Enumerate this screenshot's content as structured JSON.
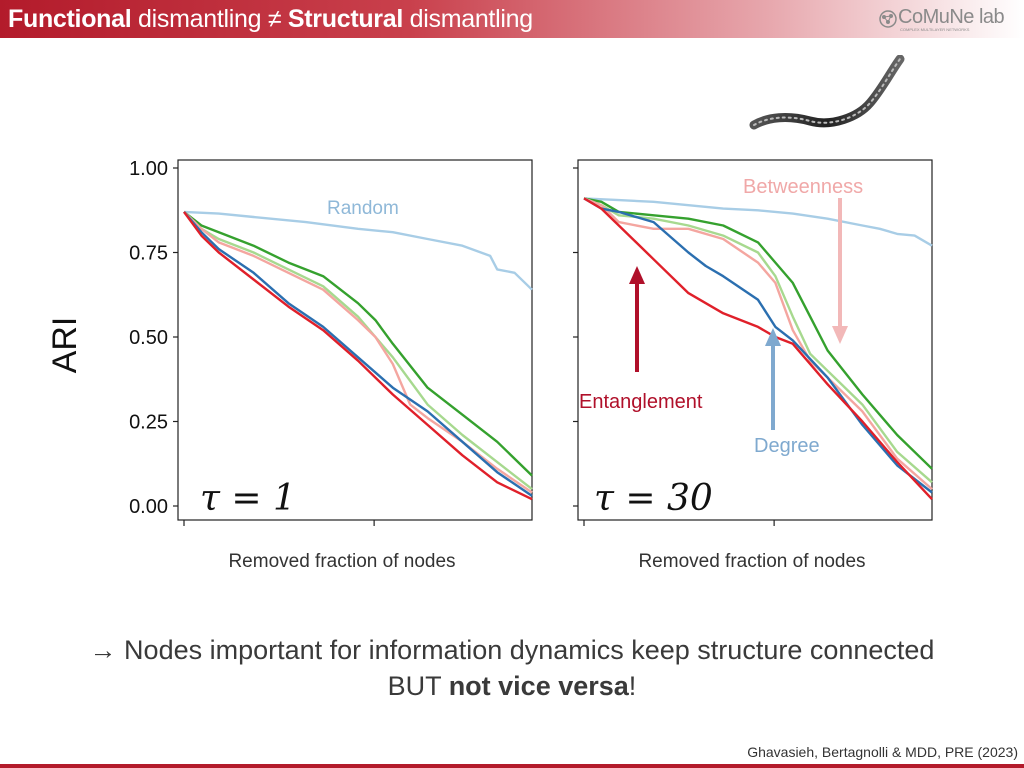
{
  "slide": {
    "title_bold_1": "Functional",
    "title_text_1": " dismantling ",
    "title_neq": "≠",
    "title_bold_2": " Structural",
    "title_text_2": " dismantling",
    "lab_name": "CoMuNe lab",
    "lab_subtitle": "COMPLEX MULTILAYER NETWORKS",
    "caption_line1": "→ Nodes important for information dynamics keep structure connected",
    "caption_line2_pre": "BUT ",
    "caption_line2_bold": "not vice versa",
    "caption_line2_post": "!",
    "citation": "Ghavasieh, Bertagnolli & MDD, PRE (2023)"
  },
  "colors": {
    "accent": "#b31b2b",
    "random": "#a8cde6",
    "degree": "#2b6fb0",
    "betweenness": "#f4a6a0",
    "entanglement": "#e0202a",
    "green_dark": "#35a12e",
    "green_light": "#a7d98f",
    "arrow_entanglement": "#b0102a",
    "arrow_degree": "#7fa9cf",
    "arrow_betweenness": "#f2b8b8"
  },
  "chart_data": [
    {
      "type": "line",
      "annotation": "τ = 1",
      "xlabel": "Removed fraction of nodes",
      "ylabel": "ARI",
      "ylim": [
        0,
        1
      ],
      "yticks": [
        "1.00",
        "0.75",
        "0.50",
        "0.25",
        "0.00"
      ],
      "series": [
        {
          "name": "Random",
          "color": "#a8cde6",
          "x": [
            0,
            0.1,
            0.2,
            0.35,
            0.5,
            0.6,
            0.7,
            0.8,
            0.88,
            0.9,
            0.95,
            1.0
          ],
          "y": [
            0.87,
            0.865,
            0.855,
            0.84,
            0.82,
            0.81,
            0.79,
            0.77,
            0.74,
            0.7,
            0.69,
            0.64
          ]
        },
        {
          "color": "#35a12e",
          "x": [
            0,
            0.05,
            0.1,
            0.2,
            0.3,
            0.4,
            0.5,
            0.55,
            0.6,
            0.7,
            0.8,
            0.9,
            1.0
          ],
          "y": [
            0.87,
            0.83,
            0.81,
            0.77,
            0.72,
            0.68,
            0.6,
            0.55,
            0.48,
            0.35,
            0.27,
            0.19,
            0.09
          ]
        },
        {
          "color": "#a7d98f",
          "x": [
            0,
            0.05,
            0.1,
            0.2,
            0.3,
            0.4,
            0.5,
            0.55,
            0.6,
            0.7,
            0.8,
            0.9,
            1.0
          ],
          "y": [
            0.87,
            0.82,
            0.79,
            0.75,
            0.7,
            0.65,
            0.56,
            0.5,
            0.44,
            0.3,
            0.21,
            0.13,
            0.05
          ]
        },
        {
          "name": "Betweenness",
          "color": "#f4a6a0",
          "x": [
            0,
            0.05,
            0.1,
            0.2,
            0.3,
            0.4,
            0.5,
            0.55,
            0.6,
            0.65,
            0.7,
            0.8,
            0.9,
            1.0
          ],
          "y": [
            0.87,
            0.82,
            0.78,
            0.74,
            0.69,
            0.64,
            0.55,
            0.5,
            0.42,
            0.3,
            0.26,
            0.19,
            0.11,
            0.04
          ]
        },
        {
          "name": "Degree",
          "color": "#2b6fb0",
          "x": [
            0,
            0.05,
            0.1,
            0.2,
            0.3,
            0.4,
            0.5,
            0.6,
            0.7,
            0.8,
            0.9,
            1.0
          ],
          "y": [
            0.87,
            0.81,
            0.76,
            0.69,
            0.6,
            0.53,
            0.44,
            0.35,
            0.28,
            0.19,
            0.1,
            0.03
          ]
        },
        {
          "name": "Entanglement",
          "color": "#e0202a",
          "x": [
            0,
            0.05,
            0.1,
            0.2,
            0.3,
            0.4,
            0.5,
            0.6,
            0.7,
            0.8,
            0.9,
            1.0
          ],
          "y": [
            0.87,
            0.8,
            0.75,
            0.67,
            0.59,
            0.52,
            0.43,
            0.33,
            0.24,
            0.15,
            0.07,
            0.02
          ]
        }
      ]
    },
    {
      "type": "line",
      "annotation": "τ = 30",
      "xlabel": "Removed fraction of nodes",
      "ylabel": "",
      "ylim": [
        0,
        1
      ],
      "series": [
        {
          "name": "Random",
          "color": "#a8cde6",
          "x": [
            0,
            0.1,
            0.2,
            0.3,
            0.4,
            0.5,
            0.6,
            0.7,
            0.8,
            0.85,
            0.9,
            0.95,
            1.0
          ],
          "y": [
            0.91,
            0.905,
            0.9,
            0.89,
            0.88,
            0.875,
            0.865,
            0.85,
            0.83,
            0.82,
            0.805,
            0.8,
            0.77
          ]
        },
        {
          "color": "#35a12e",
          "x": [
            0,
            0.05,
            0.1,
            0.2,
            0.3,
            0.4,
            0.5,
            0.55,
            0.6,
            0.65,
            0.7,
            0.8,
            0.9,
            1.0
          ],
          "y": [
            0.91,
            0.9,
            0.87,
            0.86,
            0.85,
            0.83,
            0.78,
            0.72,
            0.66,
            0.56,
            0.46,
            0.33,
            0.21,
            0.11
          ]
        },
        {
          "color": "#a7d98f",
          "x": [
            0,
            0.05,
            0.1,
            0.2,
            0.3,
            0.4,
            0.5,
            0.55,
            0.6,
            0.65,
            0.7,
            0.8,
            0.9,
            1.0
          ],
          "y": [
            0.91,
            0.89,
            0.86,
            0.85,
            0.83,
            0.8,
            0.75,
            0.68,
            0.56,
            0.45,
            0.4,
            0.3,
            0.16,
            0.07
          ]
        },
        {
          "name": "Betweenness",
          "color": "#f4a6a0",
          "x": [
            0,
            0.05,
            0.1,
            0.2,
            0.3,
            0.4,
            0.5,
            0.55,
            0.6,
            0.65,
            0.7,
            0.8,
            0.9,
            1.0
          ],
          "y": [
            0.91,
            0.89,
            0.84,
            0.82,
            0.82,
            0.79,
            0.72,
            0.66,
            0.52,
            0.43,
            0.38,
            0.28,
            0.14,
            0.05
          ]
        },
        {
          "name": "Degree",
          "color": "#2b6fb0",
          "x": [
            0,
            0.05,
            0.1,
            0.2,
            0.3,
            0.35,
            0.4,
            0.5,
            0.55,
            0.6,
            0.7,
            0.8,
            0.9,
            1.0
          ],
          "y": [
            0.91,
            0.88,
            0.87,
            0.84,
            0.75,
            0.71,
            0.68,
            0.61,
            0.53,
            0.49,
            0.38,
            0.24,
            0.12,
            0.04
          ]
        },
        {
          "name": "Entanglement",
          "color": "#e0202a",
          "x": [
            0,
            0.05,
            0.1,
            0.2,
            0.3,
            0.4,
            0.5,
            0.55,
            0.6,
            0.7,
            0.8,
            0.9,
            1.0
          ],
          "y": [
            0.91,
            0.88,
            0.83,
            0.73,
            0.63,
            0.57,
            0.53,
            0.5,
            0.48,
            0.36,
            0.25,
            0.13,
            0.02
          ]
        }
      ],
      "arrows": [
        {
          "label": "Entanglement",
          "color": "#b0102a"
        },
        {
          "label": "Degree",
          "color": "#7fa9cf"
        },
        {
          "label": "Betweenness",
          "color": "#f2b8b8"
        }
      ]
    }
  ]
}
